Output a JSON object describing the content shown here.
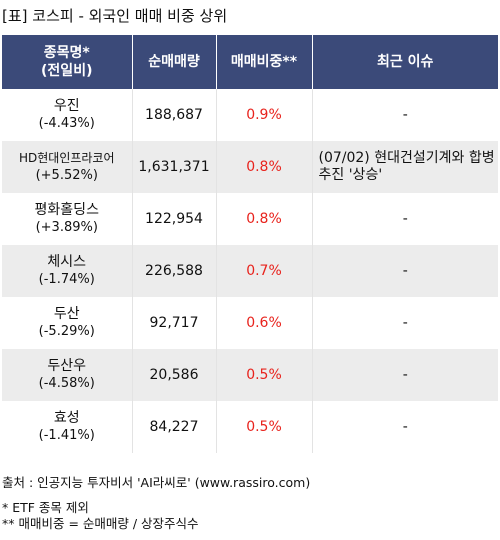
{
  "title": "[표] 코스피 - 외국인 매매 비중 상위",
  "headers": {
    "name_line1": "종목명*",
    "name_line2": "(전일비)",
    "volume": "순매매량",
    "ratio": "매매비중**",
    "issue": "최근 이슈"
  },
  "rows": [
    {
      "name": "우진",
      "change": "(-4.43%)",
      "volume": "188,687",
      "ratio": "0.9%",
      "issue": "-"
    },
    {
      "name": "HD현대인프라코어",
      "change": "(+5.52%)",
      "volume": "1,631,371",
      "ratio": "0.8%",
      "issue": "(07/02) 현대건설기계와 합병 추진 '상승'"
    },
    {
      "name": "평화홀딩스",
      "change": "(+3.89%)",
      "volume": "122,954",
      "ratio": "0.8%",
      "issue": "-"
    },
    {
      "name": "체시스",
      "change": "(-1.74%)",
      "volume": "226,588",
      "ratio": "0.7%",
      "issue": "-"
    },
    {
      "name": "두산",
      "change": "(-5.29%)",
      "volume": "92,717",
      "ratio": "0.6%",
      "issue": "-"
    },
    {
      "name": "두산우",
      "change": "(-4.58%)",
      "volume": "20,586",
      "ratio": "0.5%",
      "issue": "-"
    },
    {
      "name": "효성",
      "change": "(-1.41%)",
      "volume": "84,227",
      "ratio": "0.5%",
      "issue": "-"
    }
  ],
  "footer": {
    "source": "출처 : 인공지능 투자비서 'AI라씨로' (www.rassiro.com)",
    "note1": "* ETF 종목 제외",
    "note2": "** 매매비중 = 순매매량 / 상장주식수"
  },
  "colors": {
    "header_bg": "#3b4a79",
    "ratio_text": "#e8231d",
    "stripe_bg": "#ececec"
  }
}
